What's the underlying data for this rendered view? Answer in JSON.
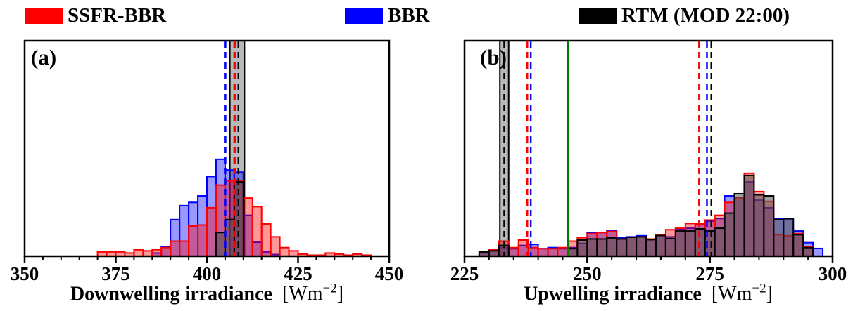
{
  "legend": {
    "items": [
      {
        "label": "SSFR-BBR",
        "color": "#ff0000"
      },
      {
        "label": "BBR",
        "color": "#0000ff"
      },
      {
        "label": "RTM (MOD 22:00)",
        "color": "#000000"
      }
    ]
  },
  "chart_data": [
    {
      "type": "histogram",
      "panel_tag": "(a)",
      "xlabel_main": "Downwelling irradiance",
      "xunit_pre": "[Wm",
      "xunit_sup": "−2",
      "xunit_post": "]",
      "xlim": [
        350,
        450
      ],
      "major_ticks": [
        {
          "value": 350,
          "label": "350"
        },
        {
          "value": 375,
          "label": "375"
        },
        {
          "value": 400,
          "label": "400"
        },
        {
          "value": 425,
          "label": "425"
        },
        {
          "value": 450,
          "label": "450"
        }
      ],
      "minor_tick_step": 5,
      "y_axis": "none (relative frequency, heights given as fraction of panel height)",
      "bin_width": 2.5,
      "bin_centers": [
        371.25,
        373.75,
        376.25,
        378.75,
        381.25,
        383.75,
        386.25,
        388.75,
        391.25,
        393.75,
        396.25,
        398.75,
        401.25,
        403.75,
        406.25,
        408.75,
        411.25,
        413.75,
        416.25,
        418.75,
        421.25,
        423.75,
        426.25,
        428.75,
        431.25,
        433.75,
        436.25,
        438.75,
        441.25,
        443.75
      ],
      "series": [
        {
          "name": "BBR",
          "edge_color": "#0000ff",
          "fill_color": "rgba(0,0,255,0.40)",
          "heights": [
            0,
            0,
            0,
            0,
            0,
            0,
            0.015,
            0.045,
            0.17,
            0.235,
            0.25,
            0.28,
            0.37,
            0.45,
            0.4,
            0.39,
            0.19,
            0.065,
            0.02,
            0.008,
            0,
            0,
            0,
            0,
            0,
            0,
            0,
            0,
            0,
            0
          ]
        },
        {
          "name": "SSFR-BBR",
          "edge_color": "#ff0000",
          "fill_color": "rgba(255,0,0,0.40)",
          "heights": [
            0.02,
            0.02,
            0.02,
            0.015,
            0.03,
            0.025,
            0.03,
            0.04,
            0.07,
            0.07,
            0.14,
            0.145,
            0.225,
            0.33,
            0.35,
            0.35,
            0.27,
            0.23,
            0.15,
            0.09,
            0.04,
            0.025,
            0.01,
            0.005,
            0.005,
            0.015,
            0.01,
            0.005,
            0.01,
            0.005
          ]
        },
        {
          "name": "RTM (MOD 22:00)",
          "edge_color": "#000000",
          "fill_color": "rgba(80,80,80,0.55)",
          "heights": [
            0,
            0,
            0,
            0,
            0,
            0,
            0,
            0,
            0,
            0,
            0,
            0,
            0,
            0.11,
            0.17,
            0.345,
            0,
            0,
            0,
            0,
            0,
            0,
            0,
            0,
            0,
            0,
            0,
            0,
            0,
            0
          ]
        }
      ],
      "band": {
        "from": 406.3,
        "to": 410.3,
        "fill": "rgba(128,128,128,0.55)",
        "edge_color": "#000000"
      },
      "vlines": [
        {
          "x": 405.0,
          "color": "#0000ff",
          "style": "dashed",
          "width": 3.5
        },
        {
          "x": 407.6,
          "color": "#ff0000",
          "style": "dashed",
          "width": 3.5
        },
        {
          "x": 408.6,
          "color": "#000000",
          "style": "dashed",
          "width": 2
        }
      ]
    },
    {
      "type": "histogram",
      "panel_tag": "(b)",
      "xlabel_main": "Upwelling irradiance",
      "xunit_pre": "[Wm",
      "xunit_sup": "−2",
      "xunit_post": "]",
      "xlim": [
        225,
        300
      ],
      "major_ticks": [
        {
          "value": 225,
          "label": "225"
        },
        {
          "value": 250,
          "label": "250"
        },
        {
          "value": 275,
          "label": "275"
        },
        {
          "value": 300,
          "label": "300"
        }
      ],
      "minor_tick_step": 5,
      "y_axis": "none (relative frequency, heights given as fraction of panel height)",
      "bin_width": 2,
      "bin_centers": [
        229,
        231,
        233,
        235,
        237,
        239,
        241,
        243,
        245,
        247,
        249,
        251,
        253,
        255,
        257,
        259,
        261,
        263,
        265,
        267,
        269,
        271,
        273,
        275,
        277,
        279,
        281,
        283,
        285,
        287,
        289,
        291,
        293,
        295,
        297
      ],
      "series": [
        {
          "name": "BBR",
          "edge_color": "#0000ff",
          "fill_color": "rgba(0,0,255,0.40)",
          "heights": [
            0.015,
            0.025,
            0.04,
            0.035,
            0.05,
            0.055,
            0.035,
            0.04,
            0.035,
            0.04,
            0.06,
            0.108,
            0.11,
            0.12,
            0.085,
            0.09,
            0.095,
            0.077,
            0.096,
            0.09,
            0.127,
            0.13,
            0.15,
            0.163,
            0.175,
            0.28,
            0.27,
            0.345,
            0.26,
            0.225,
            0.175,
            0.17,
            0.117,
            0.063,
            0.036
          ]
        },
        {
          "name": "SSFR-BBR",
          "edge_color": "#ff0000",
          "fill_color": "rgba(255,0,0,0.40)",
          "heights": [
            0.02,
            0.03,
            0.07,
            0.04,
            0.075,
            0.04,
            0.035,
            0.035,
            0.04,
            0.07,
            0.086,
            0.105,
            0.11,
            0.115,
            0.08,
            0.088,
            0.09,
            0.08,
            0.1,
            0.123,
            0.13,
            0.152,
            0.15,
            0.168,
            0.19,
            0.25,
            0.27,
            0.385,
            0.3,
            0.255,
            0.1,
            0.095,
            0.105,
            0.045,
            0
          ]
        },
        {
          "name": "RTM (MOD 22:00)",
          "edge_color": "#000000",
          "fill_color": "rgba(80,80,80,0.55)",
          "heights": [
            0.02,
            0.025,
            0.05,
            0,
            0,
            0,
            0,
            0,
            0,
            0.035,
            0.075,
            0.08,
            0.08,
            0.085,
            0.08,
            0.088,
            0.09,
            0.077,
            0.096,
            0.082,
            0.117,
            0.117,
            0.127,
            0.117,
            0.13,
            0.2,
            0.29,
            0.375,
            0.285,
            0.28,
            0.17,
            0.175,
            0.1,
            0.04,
            0
          ]
        }
      ],
      "band": {
        "from": 232.2,
        "to": 234.0,
        "fill": "rgba(128,128,128,0.55)",
        "edge_color": "#000000"
      },
      "vlines": [
        {
          "x": 233.1,
          "color": "#000000",
          "style": "dashed",
          "width": 2.5
        },
        {
          "x": 237.8,
          "color": "#ff0000",
          "style": "dashed",
          "width": 2.5
        },
        {
          "x": 238.5,
          "color": "#0000ff",
          "style": "dashed",
          "width": 2.5
        },
        {
          "x": 246.1,
          "color": "#008000",
          "style": "solid",
          "width": 2.5
        },
        {
          "x": 272.8,
          "color": "#ff0000",
          "style": "dashed",
          "width": 2.5
        },
        {
          "x": 274.4,
          "color": "#0000ff",
          "style": "dashed",
          "width": 2.5
        },
        {
          "x": 275.3,
          "color": "#000000",
          "style": "dashed",
          "width": 2.5
        }
      ]
    }
  ]
}
